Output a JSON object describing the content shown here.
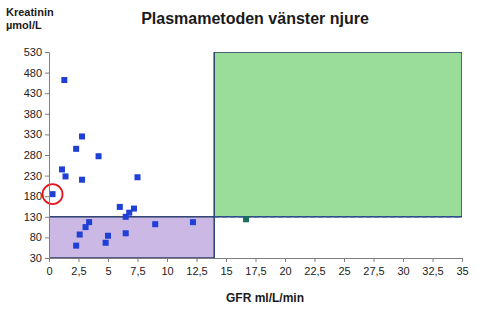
{
  "chart_data": {
    "type": "scatter",
    "title": "Plasmametoden vänster njure",
    "xlabel": "GFR ml/L/min",
    "ylabel": [
      "Kreatinin",
      "µmol/L"
    ],
    "marker": "square",
    "grid": false,
    "xlim": [
      0,
      35
    ],
    "ylim": [
      30,
      530
    ],
    "xticks": [
      {
        "value": 0,
        "label": "0"
      },
      {
        "value": 2.5,
        "label": "2,5"
      },
      {
        "value": 5,
        "label": "5"
      },
      {
        "value": 7.5,
        "label": "7,5"
      },
      {
        "value": 10,
        "label": "10"
      },
      {
        "value": 12.5,
        "label": "12,5"
      },
      {
        "value": 15,
        "label": "15"
      },
      {
        "value": 17.5,
        "label": "17,5"
      },
      {
        "value": 20,
        "label": "20"
      },
      {
        "value": 22.5,
        "label": "22,5"
      },
      {
        "value": 25,
        "label": "25"
      },
      {
        "value": 27.5,
        "label": "27,5"
      },
      {
        "value": 30,
        "label": "30"
      },
      {
        "value": 32.5,
        "label": "32,5"
      },
      {
        "value": 35,
        "label": "35"
      }
    ],
    "yticks": [
      30,
      80,
      130,
      180,
      230,
      280,
      330,
      380,
      430,
      480,
      530
    ],
    "x": [
      1.3,
      1.1,
      1.4,
      2.3,
      2.8,
      2.8,
      4.2,
      0.3,
      7.5,
      6.0,
      7.2,
      6.8,
      6.5,
      3.4,
      3.1,
      2.6,
      2.3,
      5.0,
      4.8,
      6.5,
      9.0,
      12.2,
      16.7
    ],
    "values": [
      462,
      245,
      228,
      295,
      325,
      220,
      277,
      185,
      226,
      154,
      150,
      140,
      130,
      117,
      105,
      87,
      60,
      84,
      67,
      90,
      112,
      117,
      124
    ],
    "colors": [
      "#1f3fd6",
      "#1f3fd6",
      "#1f3fd6",
      "#1f3fd6",
      "#1f3fd6",
      "#1f3fd6",
      "#1f3fd6",
      "#1f3fd6",
      "#1f3fd6",
      "#1f3fd6",
      "#1f3fd6",
      "#1f3fd6",
      "#1f3fd6",
      "#1f3fd6",
      "#1f3fd6",
      "#1f3fd6",
      "#1f3fd6",
      "#1f3fd6",
      "#1f3fd6",
      "#1f3fd6",
      "#1f3fd6",
      "#1f3fd6",
      "#1e6b5c"
    ],
    "regions": [
      {
        "x": [
          0,
          14
        ],
        "y": [
          30,
          130
        ],
        "color": "#ccb8e4"
      },
      {
        "x": [
          14,
          35
        ],
        "y": [
          130,
          530
        ],
        "color": "#99dd99"
      }
    ],
    "reference_line": {
      "y": 130,
      "x": [
        14,
        35
      ],
      "color": "#2e5aa8",
      "line_style": "dashed"
    },
    "highlight": {
      "point": 7,
      "color": "#e8141c"
    }
  }
}
